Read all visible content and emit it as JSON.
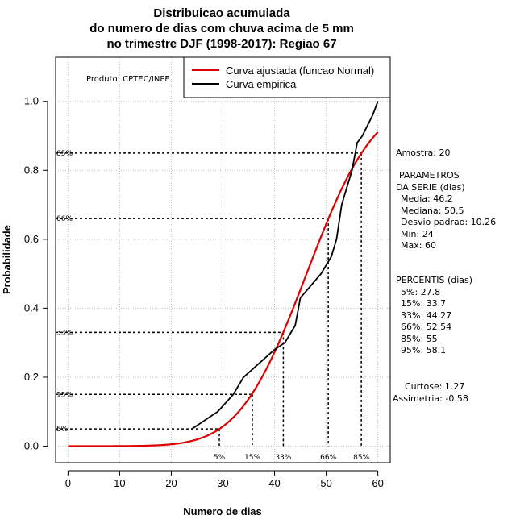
{
  "chart_data": {
    "type": "line",
    "title": [
      "Distribuicao acumulada",
      "do numero de dias com chuva acima de 5 mm",
      "no trimestre DJF (1998-2017): Regiao 67"
    ],
    "xlabel": "Numero de dias",
    "ylabel": "Probabilidade",
    "xlim": [
      -2.4,
      62.4
    ],
    "ylim": [
      -0.048,
      1.128
    ],
    "xticks": [
      0,
      10,
      20,
      30,
      40,
      50,
      60
    ],
    "yticks": [
      0.0,
      0.2,
      0.4,
      0.6,
      0.8,
      1.0
    ],
    "xtick_labels": [
      "0",
      "10",
      "20",
      "30",
      "40",
      "50",
      "60"
    ],
    "ytick_labels": [
      "0.0",
      "0.2",
      "0.4",
      "0.6",
      "0.8",
      "1.0"
    ],
    "grid": true,
    "product_label": "Produto: CPTEC/INPE",
    "legend": {
      "position": "top-right",
      "entries": [
        {
          "label": "Curva ajustada (funcao Normal)",
          "color": "#e00000"
        },
        {
          "label": "Curva empirica",
          "color": "#000000"
        }
      ]
    },
    "normal_fit": {
      "name": "Curva ajustada (funcao Normal)",
      "mean": 46.2,
      "sd": 10.26,
      "x_from": 0,
      "x_to": 60,
      "color": "#e00000"
    },
    "series": [
      {
        "name": "Curva empirica",
        "color": "#000000",
        "x": [
          24,
          29,
          32,
          34,
          40,
          42,
          44,
          45,
          49,
          51,
          52,
          53,
          54,
          55,
          56,
          57,
          58,
          59,
          60
        ],
        "y": [
          0.05,
          0.1,
          0.15,
          0.2,
          0.28,
          0.3,
          0.35,
          0.43,
          0.5,
          0.55,
          0.6,
          0.7,
          0.75,
          0.8,
          0.88,
          0.9,
          0.93,
          0.96,
          1.0
        ]
      }
    ],
    "percentile_lines": [
      {
        "label": "5%",
        "p": 0.05,
        "x": 27.8
      },
      {
        "label": "15%",
        "p": 0.15,
        "x": 33.7
      },
      {
        "label": "33%",
        "p": 0.33,
        "x": 44.27
      },
      {
        "label": "66%",
        "p": 0.66,
        "x": 52.54
      },
      {
        "label": "85%",
        "p": 0.85,
        "x": 55
      },
      {
        "label": "95%",
        "p": 0.95,
        "x": 58.1
      }
    ],
    "percentile_guides": [
      {
        "label": "5%",
        "y": 0.05,
        "x": 29.3
      },
      {
        "label": "15%",
        "y": 0.15,
        "x": 35.7
      },
      {
        "label": "33%",
        "y": 0.33,
        "x": 41.7
      },
      {
        "label": "66%",
        "y": 0.66,
        "x": 50.4
      },
      {
        "label": "85%",
        "y": 0.85,
        "x": 56.8
      }
    ]
  },
  "stats_panel": {
    "sample": "Amostra: 20",
    "params_title": [
      "PARAMETROS",
      "DA SERIE (dias)"
    ],
    "params": [
      "Media: 46.2",
      "Mediana: 50.5",
      "Desvio padrao: 10.26",
      "Min: 24",
      "Max: 60"
    ],
    "perc_title": "PERCENTIS (dias)",
    "percentiles": [
      "5%: 27.8",
      "15%: 33.7",
      "33%: 44.27",
      "66%: 52.54",
      "85%: 55",
      "95%: 58.1"
    ],
    "kurtosis": "Curtose: 1.27",
    "skewness": "Assimetria: -0.58"
  }
}
